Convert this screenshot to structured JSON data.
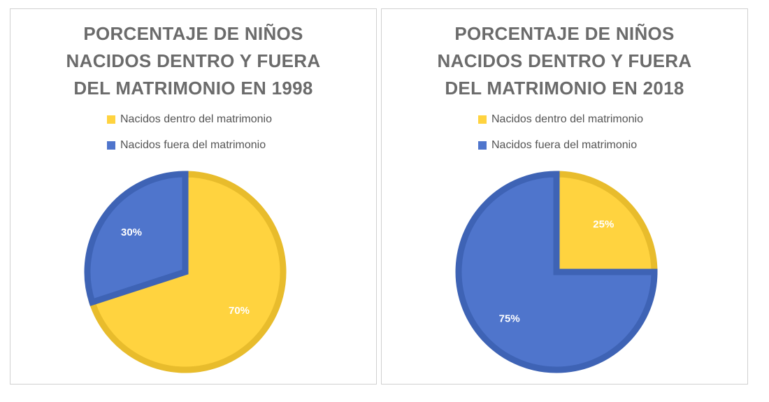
{
  "charts": [
    {
      "title_lines": [
        "PORCENTAJE DE NIÑOS",
        "NACIDOS DENTRO Y FUERA",
        "DEL MATRIMONIO EN 1998"
      ],
      "legend": [
        {
          "label": "Nacidos dentro del matrimonio",
          "color": "#FFD33F"
        },
        {
          "label": "Nacidos fuera del matrimonio",
          "color": "#4F75CC"
        }
      ]
    },
    {
      "title_lines": [
        "PORCENTAJE DE NIÑOS",
        "NACIDOS DENTRO Y FUERA",
        "DEL MATRIMONIO EN 2018"
      ],
      "legend": [
        {
          "label": "Nacidos dentro del matrimonio",
          "color": "#FFD33F"
        },
        {
          "label": "Nacidos fuera del matrimonio",
          "color": "#4F75CC"
        }
      ]
    }
  ],
  "chart_data": [
    {
      "type": "pie",
      "title": "PORCENTAJE DE NIÑOS NACIDOS DENTRO Y FUERA DEL MATRIMONIO EN 1998",
      "categories": [
        "Nacidos dentro del matrimonio",
        "Nacidos fuera del matrimonio"
      ],
      "values": [
        70,
        30
      ],
      "data_labels": [
        "70%",
        "30%"
      ],
      "colors": [
        "#FFD33F",
        "#4F75CC"
      ],
      "border_colors": [
        "#E8BC2C",
        "#3E63B5"
      ],
      "legend_position": "top"
    },
    {
      "type": "pie",
      "title": "PORCENTAJE DE NIÑOS NACIDOS DENTRO Y FUERA DEL MATRIMONIO EN 2018",
      "categories": [
        "Nacidos dentro del matrimonio",
        "Nacidos fuera del matrimonio"
      ],
      "values": [
        25,
        75
      ],
      "data_labels": [
        "25%",
        "75%"
      ],
      "colors": [
        "#FFD33F",
        "#4F75CC"
      ],
      "border_colors": [
        "#E8BC2C",
        "#3E63B5"
      ],
      "legend_position": "top"
    }
  ]
}
